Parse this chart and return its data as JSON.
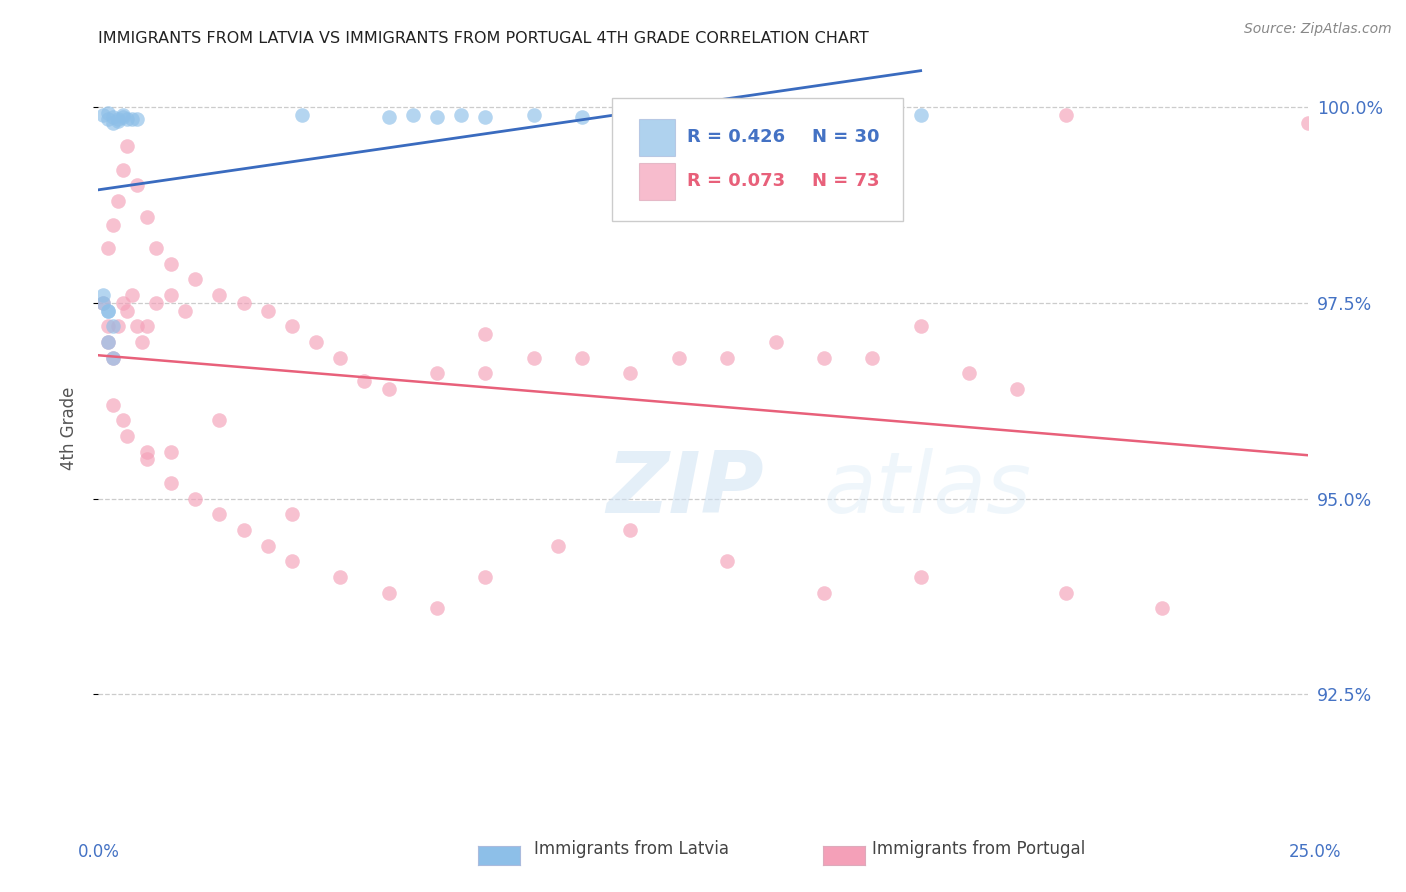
{
  "title": "IMMIGRANTS FROM LATVIA VS IMMIGRANTS FROM PORTUGAL 4TH GRADE CORRELATION CHART",
  "source": "Source: ZipAtlas.com",
  "ylabel": "4th Grade",
  "ytick_labels": [
    "100.0%",
    "97.5%",
    "95.0%",
    "92.5%"
  ],
  "ytick_values": [
    1.0,
    0.975,
    0.95,
    0.925
  ],
  "ymin": 0.91,
  "ymax": 1.008,
  "xmin": 0.0,
  "xmax": 0.25,
  "legend_r_latvia": "R = 0.426",
  "legend_n_latvia": "N = 30",
  "legend_r_portugal": "R = 0.073",
  "legend_n_portugal": "N = 73",
  "color_latvia": "#8dbfe8",
  "color_portugal": "#f4a0b8",
  "color_latvia_line": "#3a6bbf",
  "color_portugal_line": "#e8607a",
  "color_blue_text": "#4472c4",
  "color_pink_text": "#e8607a",
  "watermark_zip": "ZIP",
  "watermark_atlas": "atlas",
  "lv_x": [
    0.001,
    0.002,
    0.002,
    0.003,
    0.003,
    0.004,
    0.004,
    0.005,
    0.005,
    0.006,
    0.007,
    0.008,
    0.001,
    0.002,
    0.003,
    0.002,
    0.003,
    0.001,
    0.002,
    0.042,
    0.06,
    0.065,
    0.07,
    0.075,
    0.08,
    0.09,
    0.1,
    0.12,
    0.15,
    0.17
  ],
  "lv_y": [
    0.999,
    0.9985,
    0.9992,
    0.9988,
    0.998,
    0.9985,
    0.9982,
    0.9988,
    0.999,
    0.9985,
    0.9985,
    0.9985,
    0.975,
    0.974,
    0.972,
    0.97,
    0.968,
    0.976,
    0.974,
    0.999,
    0.9988,
    0.999,
    0.9988,
    0.999,
    0.9988,
    0.999,
    0.9988,
    0.999,
    0.999,
    0.999
  ],
  "pt_x": [
    0.001,
    0.002,
    0.002,
    0.003,
    0.004,
    0.005,
    0.006,
    0.007,
    0.008,
    0.009,
    0.01,
    0.012,
    0.015,
    0.018,
    0.002,
    0.003,
    0.004,
    0.005,
    0.006,
    0.008,
    0.01,
    0.012,
    0.015,
    0.02,
    0.025,
    0.03,
    0.035,
    0.04,
    0.045,
    0.05,
    0.055,
    0.06,
    0.07,
    0.08,
    0.09,
    0.1,
    0.11,
    0.12,
    0.13,
    0.14,
    0.15,
    0.16,
    0.17,
    0.18,
    0.19,
    0.2,
    0.005,
    0.01,
    0.015,
    0.02,
    0.025,
    0.03,
    0.035,
    0.04,
    0.05,
    0.06,
    0.07,
    0.08,
    0.095,
    0.11,
    0.13,
    0.15,
    0.17,
    0.2,
    0.22,
    0.25,
    0.003,
    0.006,
    0.01,
    0.015,
    0.025,
    0.04,
    0.08
  ],
  "pt_y": [
    0.975,
    0.972,
    0.97,
    0.968,
    0.972,
    0.975,
    0.974,
    0.976,
    0.972,
    0.97,
    0.972,
    0.975,
    0.976,
    0.974,
    0.982,
    0.985,
    0.988,
    0.992,
    0.995,
    0.99,
    0.986,
    0.982,
    0.98,
    0.978,
    0.976,
    0.975,
    0.974,
    0.972,
    0.97,
    0.968,
    0.965,
    0.964,
    0.966,
    0.966,
    0.968,
    0.968,
    0.966,
    0.968,
    0.968,
    0.97,
    0.968,
    0.968,
    0.972,
    0.966,
    0.964,
    0.999,
    0.96,
    0.956,
    0.952,
    0.95,
    0.948,
    0.946,
    0.944,
    0.942,
    0.94,
    0.938,
    0.936,
    0.94,
    0.944,
    0.946,
    0.942,
    0.938,
    0.94,
    0.938,
    0.936,
    0.998,
    0.962,
    0.958,
    0.955,
    0.956,
    0.96,
    0.948,
    0.971
  ]
}
